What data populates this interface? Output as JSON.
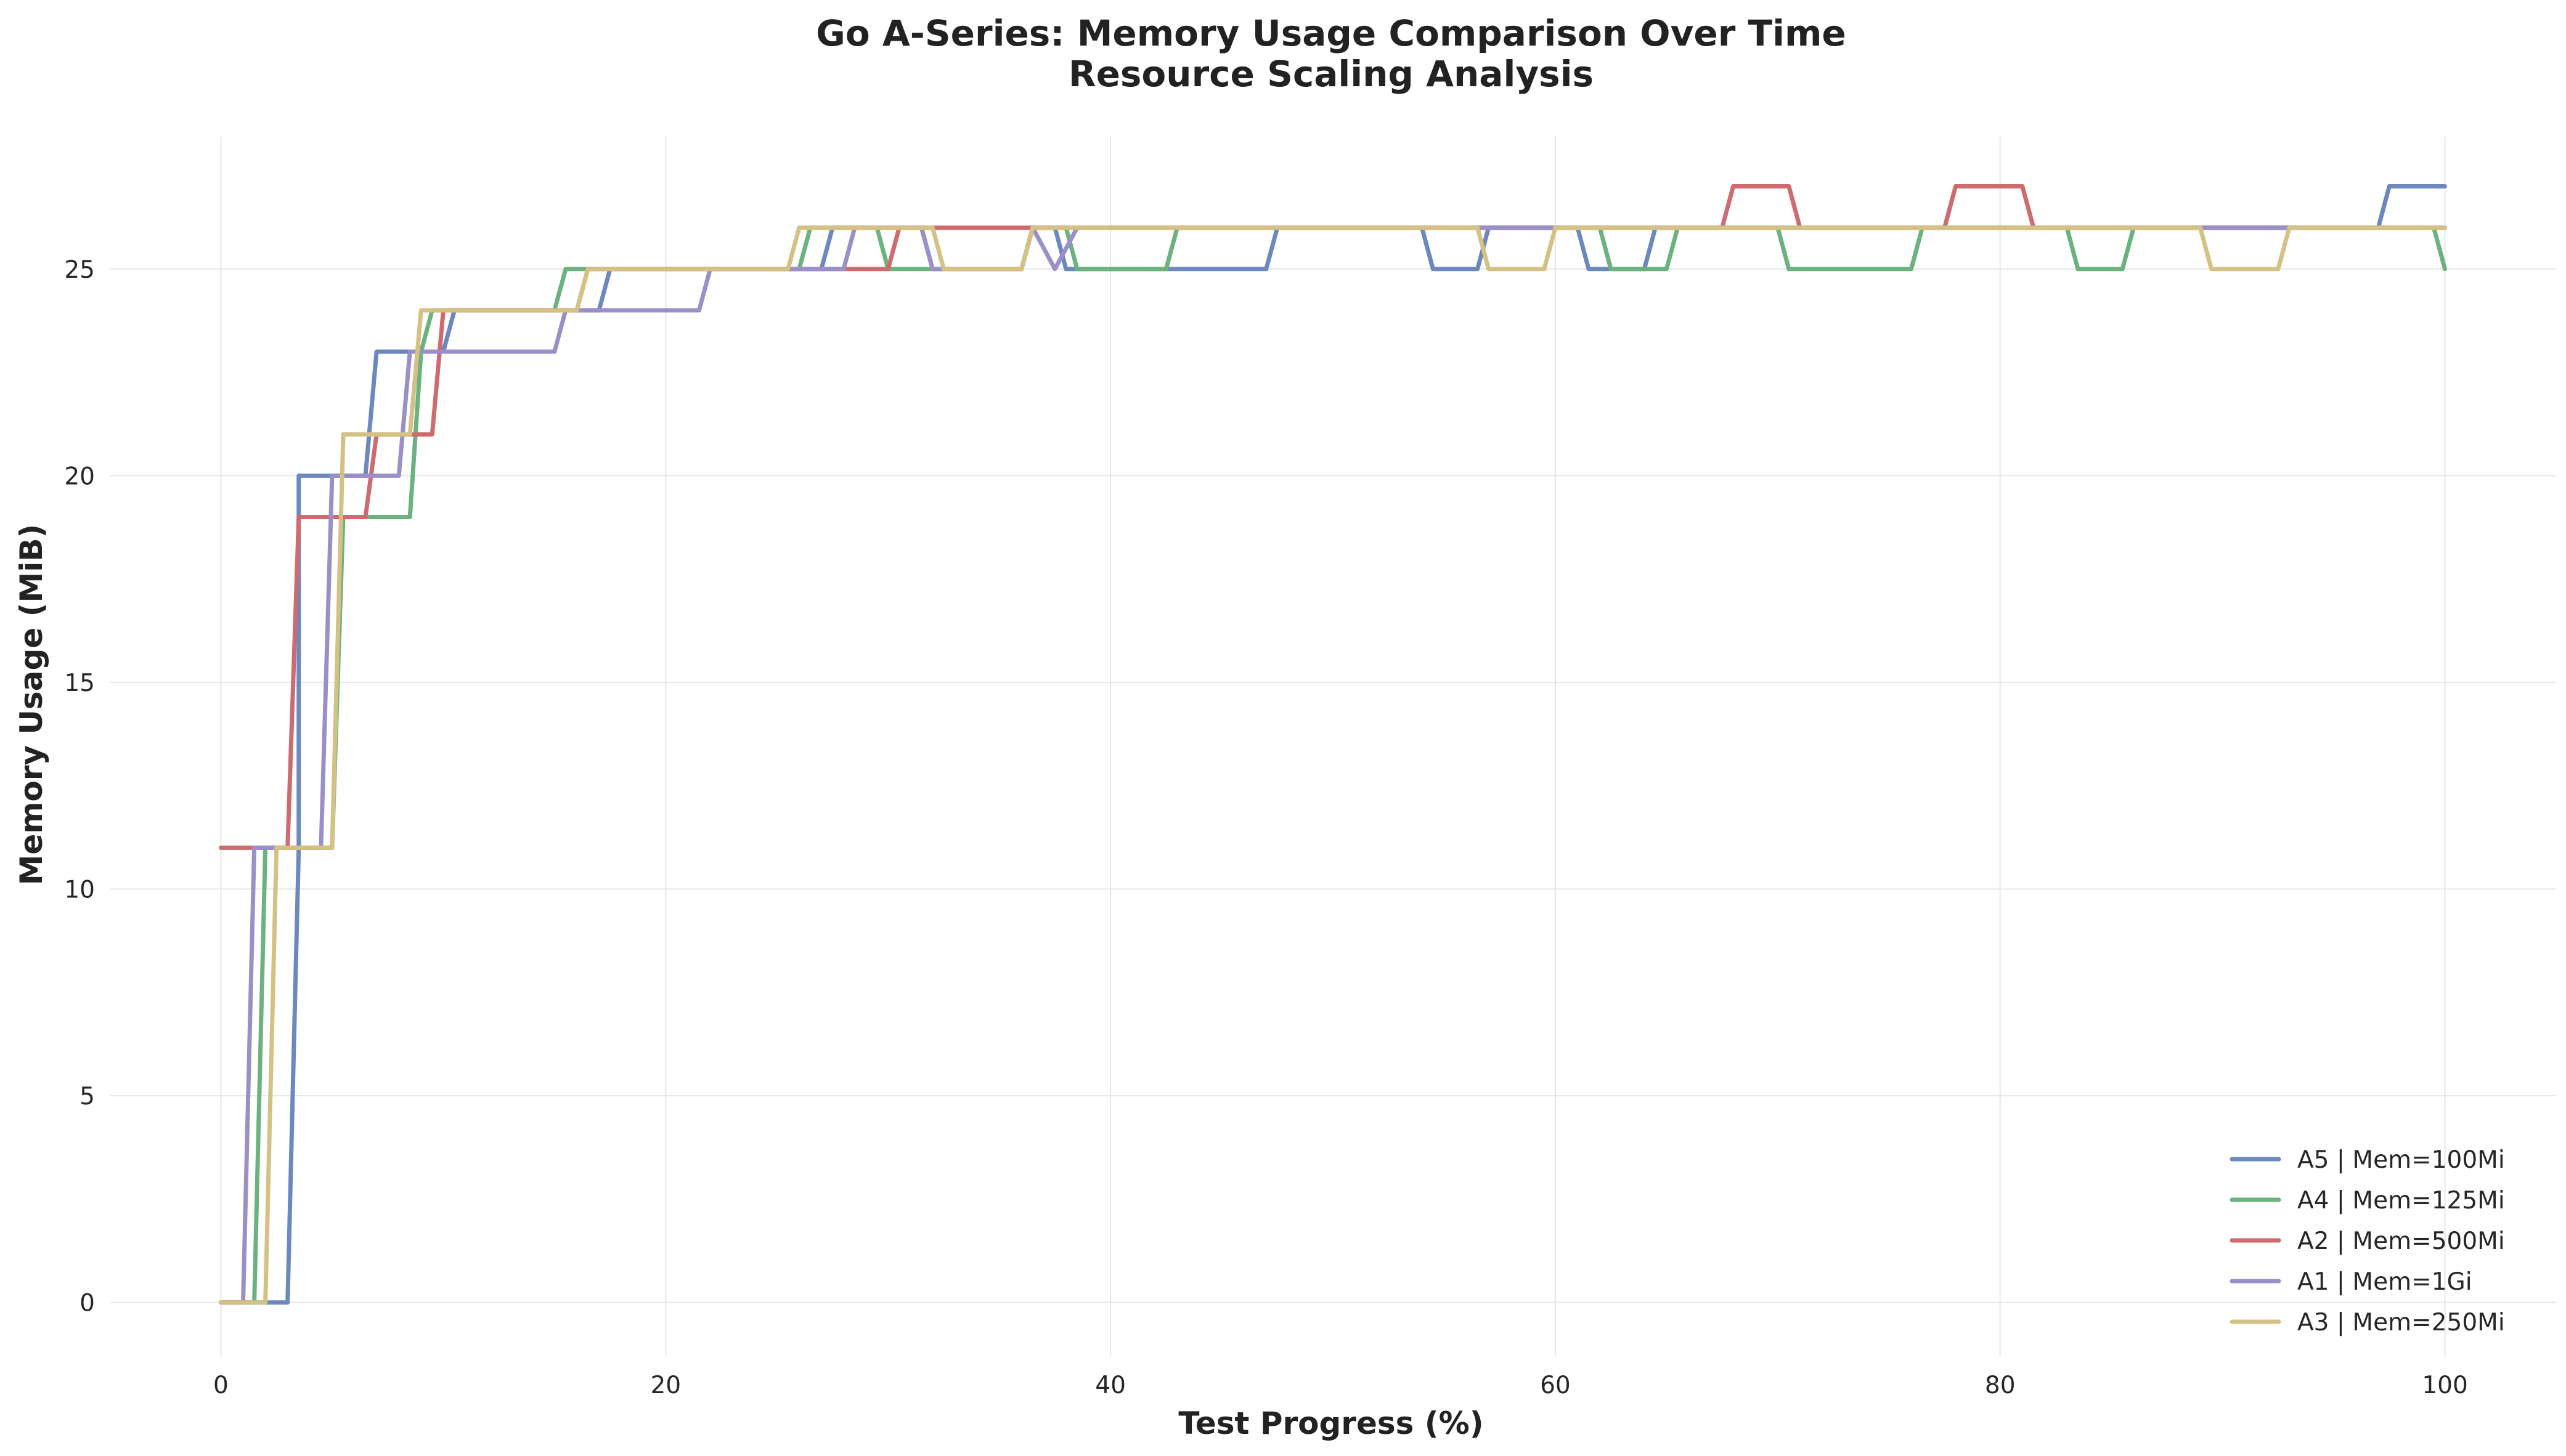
{
  "chart_data": {
    "type": "line",
    "title": "Go A-Series: Memory Usage Comparison Over Time",
    "subtitle": "Resource Scaling Analysis",
    "xlabel": "Test Progress (%)",
    "ylabel": "Memory Usage (MiB)",
    "xlim": [
      -5,
      105
    ],
    "ylim": [
      -1.3,
      28.2
    ],
    "xticks": [
      0,
      20,
      40,
      60,
      80,
      100
    ],
    "yticks": [
      0,
      5,
      10,
      15,
      20,
      25
    ],
    "grid": true,
    "legend_position": "bottom-right",
    "series": [
      {
        "name": "A5 | Mem=100Mi",
        "color": "#6b88bf",
        "points": [
          [
            0,
            0
          ],
          [
            3,
            0
          ],
          [
            3.5,
            11
          ],
          [
            3.5,
            20
          ],
          [
            6.5,
            20
          ],
          [
            7,
            23
          ],
          [
            9.5,
            23
          ],
          [
            10,
            23
          ],
          [
            10.5,
            24
          ],
          [
            17,
            24
          ],
          [
            17.5,
            25
          ],
          [
            27,
            25
          ],
          [
            27.5,
            26
          ],
          [
            31.5,
            26
          ],
          [
            32,
            25
          ],
          [
            36,
            25
          ],
          [
            36.5,
            26
          ],
          [
            37.5,
            26
          ],
          [
            38,
            25
          ],
          [
            47,
            25
          ],
          [
            47.5,
            26
          ],
          [
            54,
            26
          ],
          [
            54.5,
            25
          ],
          [
            56.5,
            25
          ],
          [
            57,
            26
          ],
          [
            61,
            26
          ],
          [
            61.5,
            25
          ],
          [
            64,
            25
          ],
          [
            64.5,
            26
          ],
          [
            97,
            26
          ],
          [
            97.5,
            27
          ],
          [
            100,
            27
          ]
        ]
      },
      {
        "name": "A4 | Mem=125Mi",
        "color": "#6cb27e",
        "points": [
          [
            0,
            0
          ],
          [
            1.5,
            0
          ],
          [
            2,
            11
          ],
          [
            5,
            11
          ],
          [
            5.5,
            19
          ],
          [
            8.5,
            19
          ],
          [
            9,
            23
          ],
          [
            9.5,
            24
          ],
          [
            15,
            24
          ],
          [
            15.5,
            25
          ],
          [
            18.5,
            25
          ],
          [
            19,
            25
          ],
          [
            26,
            25
          ],
          [
            26.5,
            26
          ],
          [
            29.5,
            26
          ],
          [
            30,
            25
          ],
          [
            36,
            25
          ],
          [
            36.5,
            26
          ],
          [
            38,
            26
          ],
          [
            38.5,
            25
          ],
          [
            42.5,
            25
          ],
          [
            43,
            26
          ],
          [
            62,
            26
          ],
          [
            62.5,
            25
          ],
          [
            65,
            25
          ],
          [
            65.5,
            26
          ],
          [
            70,
            26
          ],
          [
            70.5,
            25
          ],
          [
            76,
            25
          ],
          [
            76.5,
            26
          ],
          [
            83,
            26
          ],
          [
            83.5,
            25
          ],
          [
            85.5,
            25
          ],
          [
            86,
            26
          ],
          [
            99.5,
            26
          ],
          [
            100,
            25
          ]
        ]
      },
      {
        "name": "A2 | Mem=500Mi",
        "color": "#cd6b6e",
        "points": [
          [
            0,
            11
          ],
          [
            3,
            11
          ],
          [
            3.5,
            19
          ],
          [
            6.5,
            19
          ],
          [
            7,
            21
          ],
          [
            9.5,
            21
          ],
          [
            10,
            24
          ],
          [
            16,
            24
          ],
          [
            16.5,
            25
          ],
          [
            30,
            25
          ],
          [
            30.5,
            26
          ],
          [
            36,
            26
          ],
          [
            36.5,
            26
          ],
          [
            67.5,
            26
          ],
          [
            68,
            27
          ],
          [
            70.5,
            27
          ],
          [
            71,
            26
          ],
          [
            77.5,
            26
          ],
          [
            78,
            27
          ],
          [
            81,
            27
          ],
          [
            81.5,
            26
          ],
          [
            100,
            26
          ]
        ]
      },
      {
        "name": "A1 | Mem=1Gi",
        "color": "#9b8fc7",
        "points": [
          [
            0,
            0
          ],
          [
            1,
            0
          ],
          [
            1.5,
            11
          ],
          [
            4.5,
            11
          ],
          [
            5,
            20
          ],
          [
            8,
            20
          ],
          [
            8.5,
            23
          ],
          [
            15,
            23
          ],
          [
            15.5,
            24
          ],
          [
            21.5,
            24
          ],
          [
            22,
            25
          ],
          [
            26,
            25
          ],
          [
            26.5,
            25
          ],
          [
            28,
            25
          ],
          [
            28.5,
            26
          ],
          [
            31.5,
            26
          ],
          [
            32,
            25
          ],
          [
            36,
            25
          ],
          [
            36.5,
            26
          ],
          [
            37.5,
            25
          ],
          [
            38.5,
            26
          ],
          [
            100,
            26
          ]
        ]
      },
      {
        "name": "A3 | Mem=250Mi",
        "color": "#d4c183",
        "points": [
          [
            0,
            0
          ],
          [
            2,
            0
          ],
          [
            2.5,
            11
          ],
          [
            5,
            11
          ],
          [
            5.5,
            21
          ],
          [
            8.5,
            21
          ],
          [
            9,
            24
          ],
          [
            16,
            24
          ],
          [
            16.5,
            25
          ],
          [
            25.5,
            25
          ],
          [
            26,
            26
          ],
          [
            32,
            26
          ],
          [
            32.5,
            25
          ],
          [
            36,
            25
          ],
          [
            36.5,
            26
          ],
          [
            56.5,
            26
          ],
          [
            57,
            25
          ],
          [
            59.5,
            25
          ],
          [
            60,
            26
          ],
          [
            89,
            26
          ],
          [
            89.5,
            25
          ],
          [
            92.5,
            25
          ],
          [
            93,
            26
          ],
          [
            100,
            26
          ]
        ]
      }
    ]
  }
}
